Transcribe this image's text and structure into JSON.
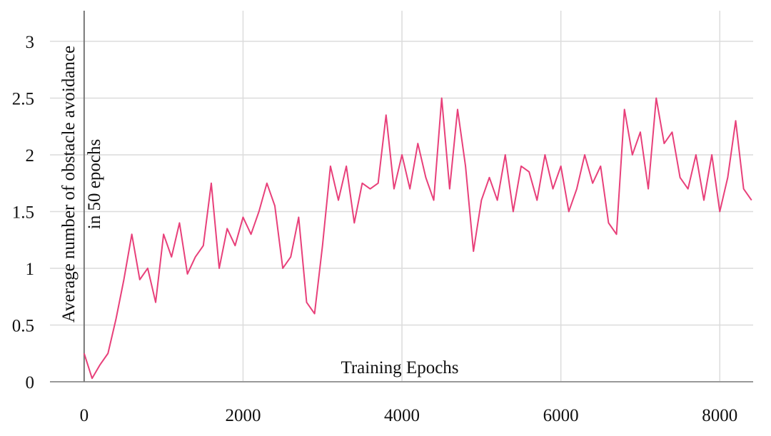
{
  "chart_data": {
    "type": "line",
    "xlabel": "Training Epochs",
    "ylabel": [
      "Average number of obstacle avoidance",
      "in 50 epochs"
    ],
    "x": [
      0,
      100,
      200,
      300,
      400,
      500,
      600,
      700,
      800,
      900,
      1000,
      1100,
      1200,
      1300,
      1400,
      1500,
      1600,
      1700,
      1800,
      1900,
      2000,
      2100,
      2200,
      2300,
      2400,
      2500,
      2600,
      2700,
      2800,
      2900,
      3000,
      3100,
      3200,
      3300,
      3400,
      3500,
      3600,
      3700,
      3800,
      3900,
      4000,
      4100,
      4200,
      4300,
      4400,
      4500,
      4600,
      4700,
      4800,
      4900,
      5000,
      5100,
      5200,
      5300,
      5400,
      5500,
      5600,
      5700,
      5800,
      5900,
      6000,
      6100,
      6200,
      6300,
      6400,
      6500,
      6600,
      6700,
      6800,
      6900,
      7000,
      7100,
      7200,
      7300,
      7400,
      7500,
      7600,
      7700,
      7800,
      7900,
      8000,
      8100,
      8200,
      8300,
      8400
    ],
    "series": [
      {
        "color": "#e8407a",
        "values": [
          0.25,
          0.03,
          0.15,
          0.25,
          0.55,
          0.9,
          1.3,
          0.9,
          1.0,
          0.7,
          1.3,
          1.1,
          1.4,
          0.95,
          1.1,
          1.2,
          1.75,
          1.0,
          1.35,
          1.2,
          1.45,
          1.3,
          1.5,
          1.75,
          1.55,
          1.0,
          1.1,
          1.45,
          0.7,
          0.6,
          1.2,
          1.9,
          1.6,
          1.9,
          1.4,
          1.75,
          1.7,
          1.75,
          2.35,
          1.7,
          2.0,
          1.7,
          2.1,
          1.8,
          1.6,
          2.5,
          1.7,
          2.4,
          1.9,
          1.15,
          1.6,
          1.8,
          1.6,
          2.0,
          1.5,
          1.9,
          1.85,
          1.6,
          2.0,
          1.7,
          1.9,
          1.5,
          1.7,
          2.0,
          1.75,
          1.9,
          1.4,
          1.3,
          2.4,
          2.0,
          2.2,
          1.7,
          2.5,
          2.1,
          2.2,
          1.8,
          1.7,
          2.0,
          1.6,
          2.0,
          1.5,
          1.8,
          2.3,
          1.7,
          1.6
        ]
      }
    ],
    "xlim": [
      -430,
      8420
    ],
    "xticks": [
      0,
      2000,
      4000,
      6000,
      8000
    ],
    "ylim": [
      0,
      3.27
    ],
    "yticks": [
      0,
      0.5,
      1,
      1.5,
      2,
      2.5,
      3
    ],
    "grid": true
  }
}
